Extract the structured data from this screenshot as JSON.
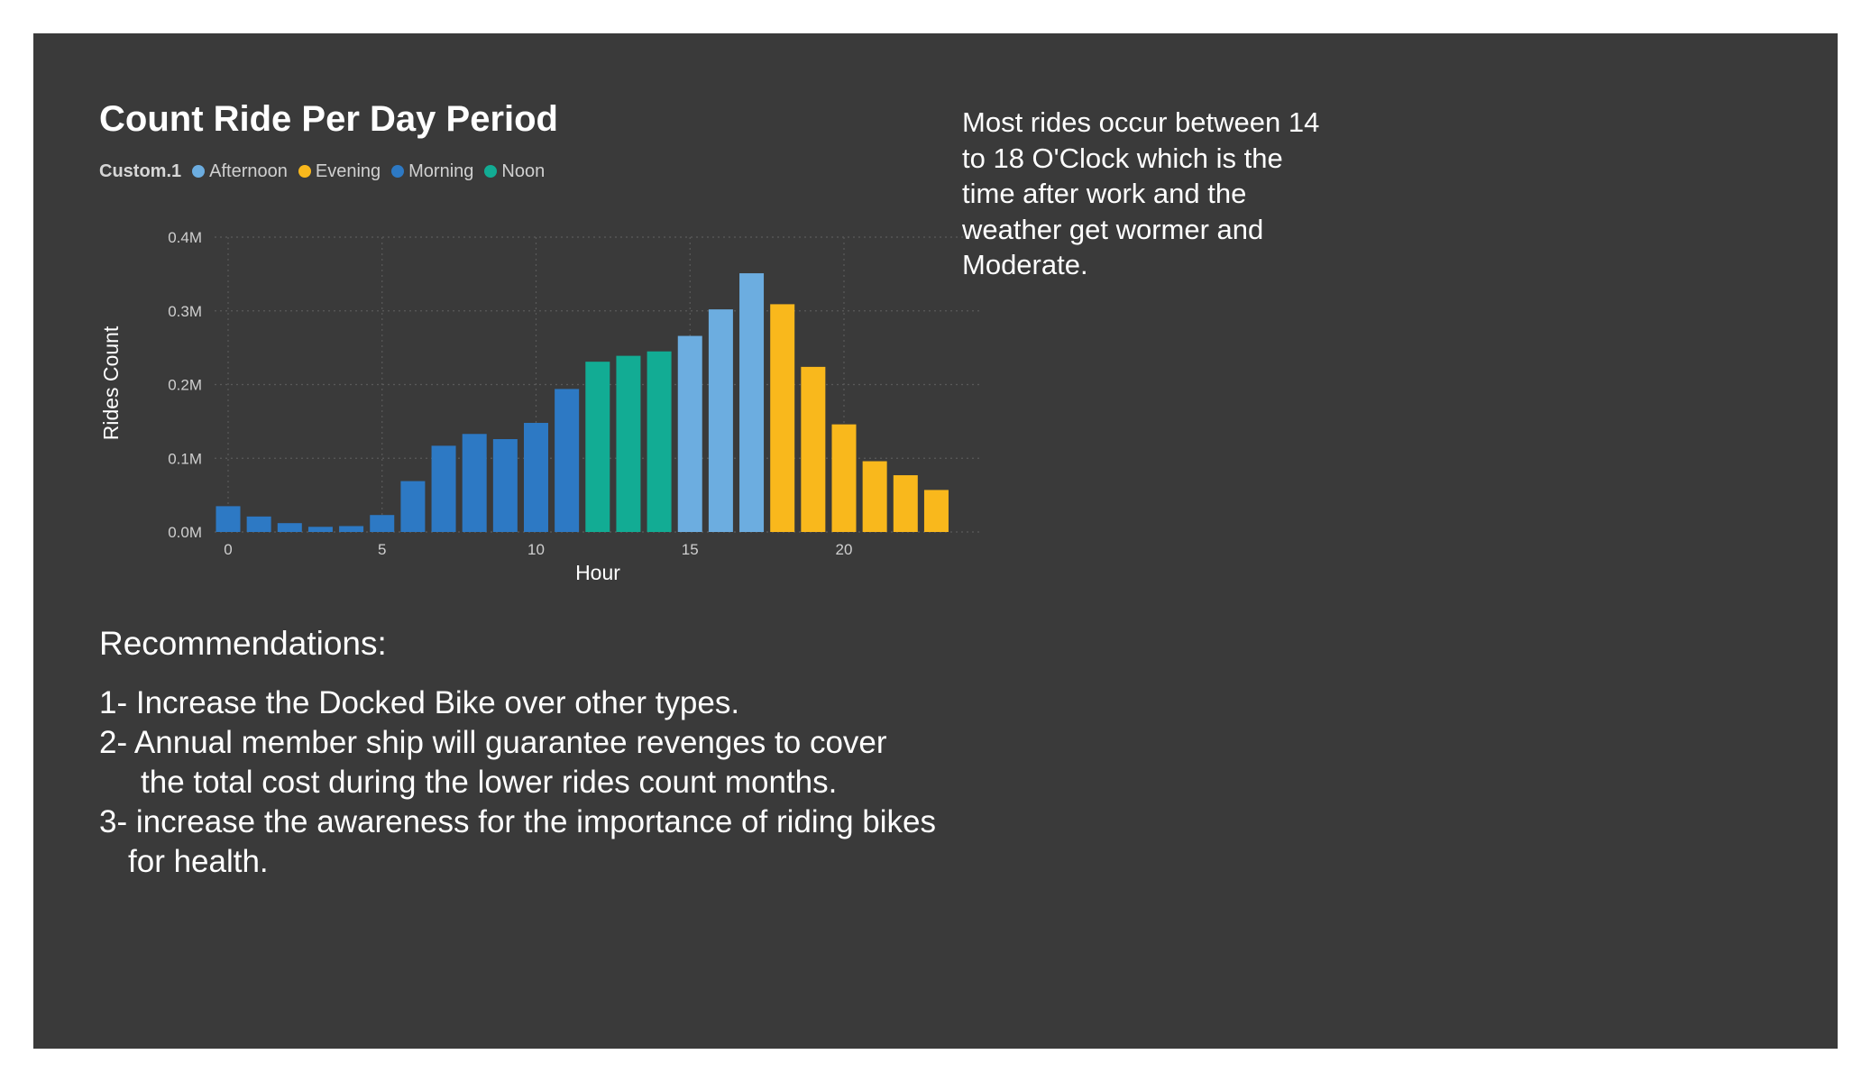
{
  "chart_data": {
    "type": "bar",
    "title": "Count Ride Per Day Period",
    "legend_title": "Custom.1",
    "legend": [
      {
        "name": "Afternoon",
        "color": "#6cade0"
      },
      {
        "name": "Evening",
        "color": "#f9b81c"
      },
      {
        "name": "Morning",
        "color": "#2d79c4"
      },
      {
        "name": "Noon",
        "color": "#12ac94"
      }
    ],
    "xlabel": "Hour",
    "ylabel": "Rides Count",
    "x_ticks": [
      "0",
      "5",
      "10",
      "15",
      "20"
    ],
    "y_ticks": [
      "0.0M",
      "0.1M",
      "0.2M",
      "0.3M",
      "0.4M"
    ],
    "ylim": [
      0,
      400000
    ],
    "grid": true,
    "bars": [
      {
        "hour": 0,
        "value": 35000,
        "period": "Morning"
      },
      {
        "hour": 1,
        "value": 21000,
        "period": "Morning"
      },
      {
        "hour": 2,
        "value": 12000,
        "period": "Morning"
      },
      {
        "hour": 3,
        "value": 7000,
        "period": "Morning"
      },
      {
        "hour": 4,
        "value": 8000,
        "period": "Morning"
      },
      {
        "hour": 5,
        "value": 23000,
        "period": "Morning"
      },
      {
        "hour": 6,
        "value": 69000,
        "period": "Morning"
      },
      {
        "hour": 7,
        "value": 117000,
        "period": "Morning"
      },
      {
        "hour": 8,
        "value": 133000,
        "period": "Morning"
      },
      {
        "hour": 9,
        "value": 126000,
        "period": "Morning"
      },
      {
        "hour": 10,
        "value": 148000,
        "period": "Morning"
      },
      {
        "hour": 11,
        "value": 194000,
        "period": "Morning"
      },
      {
        "hour": 12,
        "value": 231000,
        "period": "Noon"
      },
      {
        "hour": 13,
        "value": 239000,
        "period": "Noon"
      },
      {
        "hour": 14,
        "value": 245000,
        "period": "Noon"
      },
      {
        "hour": 15,
        "value": 266000,
        "period": "Afternoon"
      },
      {
        "hour": 16,
        "value": 302000,
        "period": "Afternoon"
      },
      {
        "hour": 17,
        "value": 351000,
        "period": "Afternoon"
      },
      {
        "hour": 18,
        "value": 309000,
        "period": "Evening"
      },
      {
        "hour": 19,
        "value": 224000,
        "period": "Evening"
      },
      {
        "hour": 20,
        "value": 146000,
        "period": "Evening"
      },
      {
        "hour": 21,
        "value": 96000,
        "period": "Evening"
      },
      {
        "hour": 22,
        "value": 77000,
        "period": "Evening"
      },
      {
        "hour": 23,
        "value": 57000,
        "period": "Evening"
      }
    ]
  },
  "insight": {
    "text": "Most rides occur between 14\nto 18 O'Clock  which is the\ntime after work and the\nweather get wormer and\nModerate."
  },
  "recommendations": {
    "heading": "Recommendations:",
    "items": [
      {
        "main": "1- Increase the Docked Bike over other types.",
        "cont": ""
      },
      {
        "main": "2- Annual member ship will guarantee revenges to cover",
        "cont": "the  total cost during the lower rides count months."
      },
      {
        "main": "3- increase the awareness for the importance of riding bikes",
        "cont": "for health."
      }
    ]
  }
}
